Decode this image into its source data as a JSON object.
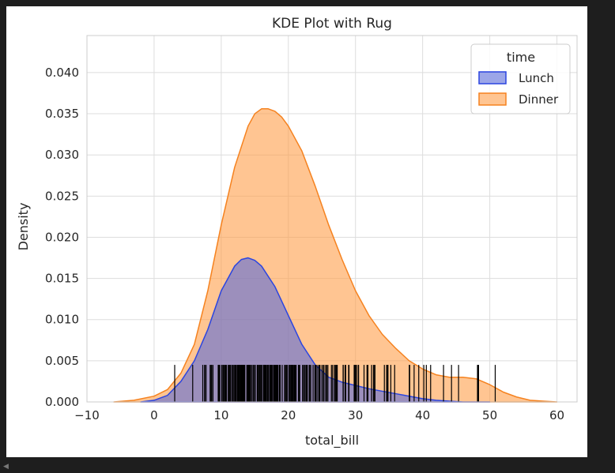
{
  "chart_data": {
    "type": "area",
    "title": "KDE Plot with Rug",
    "xlabel": "total_bill",
    "ylabel": "Density",
    "xlim": [
      -10,
      63
    ],
    "ylim": [
      0,
      0.0445
    ],
    "xticks": [
      -10,
      0,
      10,
      20,
      30,
      40,
      50,
      60
    ],
    "xtick_labels": [
      "−10",
      "0",
      "10",
      "20",
      "30",
      "40",
      "50",
      "60"
    ],
    "yticks": [
      0.0,
      0.005,
      0.01,
      0.015,
      0.02,
      0.025,
      0.03,
      0.035,
      0.04
    ],
    "ytick_labels": [
      "0.000",
      "0.005",
      "0.010",
      "0.015",
      "0.020",
      "0.025",
      "0.030",
      "0.035",
      "0.040"
    ],
    "grid": true,
    "legend": {
      "title": "time",
      "position": "top-right"
    },
    "series": [
      {
        "name": "Dinner",
        "color": "#ff9f4a",
        "edge_color": "#f5821f",
        "x": [
          -6,
          -3,
          0,
          2,
          4,
          6,
          8,
          10,
          12,
          14,
          15,
          16,
          17,
          18,
          19,
          20,
          22,
          24,
          26,
          28,
          30,
          32,
          34,
          36,
          38,
          40,
          42,
          44,
          46,
          48,
          50,
          52,
          54,
          56,
          58,
          60
        ],
        "y": [
          0.0,
          0.0002,
          0.0007,
          0.0015,
          0.0035,
          0.007,
          0.0135,
          0.0215,
          0.0285,
          0.0335,
          0.035,
          0.0356,
          0.0356,
          0.0353,
          0.0346,
          0.0335,
          0.0305,
          0.0262,
          0.0215,
          0.0173,
          0.0135,
          0.0105,
          0.0082,
          0.0065,
          0.005,
          0.004,
          0.0033,
          0.003,
          0.003,
          0.0028,
          0.0021,
          0.0012,
          0.0006,
          0.0002,
          0.0001,
          0.0
        ]
      },
      {
        "name": "Lunch",
        "color": "#5a6bd8",
        "edge_color": "#2b45e0",
        "x": [
          -2,
          0,
          2,
          4,
          6,
          8,
          10,
          12,
          13,
          14,
          15,
          16,
          18,
          20,
          22,
          24,
          26,
          28,
          30,
          32,
          34,
          36,
          38,
          40,
          42,
          44,
          46,
          48,
          50
        ],
        "y": [
          0.0,
          0.0002,
          0.0008,
          0.0025,
          0.005,
          0.0088,
          0.0135,
          0.0165,
          0.0173,
          0.0175,
          0.0172,
          0.0165,
          0.014,
          0.0105,
          0.007,
          0.0045,
          0.003,
          0.0024,
          0.002,
          0.0016,
          0.0013,
          0.001,
          0.0007,
          0.0004,
          0.0002,
          0.0001,
          0.0,
          0.0,
          0.0
        ]
      }
    ],
    "rug": {
      "color": "#000000",
      "height": 0.0045,
      "values": [
        3.07,
        5.75,
        7.25,
        7.51,
        7.56,
        7.74,
        8.35,
        8.51,
        8.52,
        8.58,
        8.77,
        9.55,
        9.6,
        9.68,
        9.78,
        10.07,
        10.09,
        10.27,
        10.29,
        10.33,
        10.34,
        10.51,
        10.59,
        10.63,
        10.65,
        10.77,
        11.02,
        11.17,
        11.24,
        11.35,
        11.38,
        11.59,
        11.61,
        11.69,
        11.87,
        12.02,
        12.03,
        12.16,
        12.26,
        12.43,
        12.46,
        12.48,
        12.54,
        12.6,
        12.66,
        12.69,
        12.74,
        12.76,
        12.9,
        13.0,
        13.03,
        13.13,
        13.16,
        13.27,
        13.28,
        13.37,
        13.39,
        13.42,
        13.51,
        13.81,
        13.94,
        14.0,
        14.07,
        14.15,
        14.26,
        14.31,
        14.48,
        14.52,
        14.73,
        14.78,
        14.83,
        15.01,
        15.04,
        15.06,
        15.36,
        15.38,
        15.42,
        15.48,
        15.53,
        15.69,
        15.77,
        15.81,
        15.95,
        15.98,
        16.0,
        16.04,
        16.27,
        16.29,
        16.31,
        16.4,
        16.43,
        16.45,
        16.47,
        16.58,
        16.66,
        16.82,
        16.93,
        16.97,
        16.99,
        17.07,
        17.26,
        17.29,
        17.31,
        17.46,
        17.47,
        17.51,
        17.59,
        17.78,
        17.82,
        17.89,
        17.92,
        18.04,
        18.15,
        18.24,
        18.26,
        18.28,
        18.29,
        18.35,
        18.43,
        18.64,
        18.69,
        18.71,
        18.78,
        19.08,
        19.44,
        19.49,
        19.65,
        19.77,
        19.81,
        19.82,
        20.08,
        20.23,
        20.27,
        20.29,
        20.45,
        20.49,
        20.53,
        20.65,
        20.69,
        20.76,
        20.9,
        20.92,
        21.01,
        21.16,
        21.5,
        21.58,
        21.7,
        22.12,
        22.23,
        22.42,
        22.49,
        22.67,
        22.75,
        22.76,
        22.82,
        23.1,
        23.17,
        23.33,
        23.68,
        23.95,
        24.01,
        24.06,
        24.08,
        24.27,
        24.52,
        24.55,
        24.59,
        24.71,
        25.0,
        25.21,
        25.28,
        25.29,
        25.56,
        25.71,
        25.89,
        26.41,
        26.59,
        26.86,
        26.88,
        27.05,
        27.18,
        27.2,
        27.28,
        28.15,
        28.17,
        28.44,
        28.55,
        28.97,
        29.03,
        29.8,
        29.85,
        29.93,
        30.06,
        30.14,
        30.4,
        30.46,
        31.27,
        31.71,
        31.85,
        32.4,
        32.68,
        32.83,
        32.9,
        34.3,
        34.63,
        34.65,
        34.81,
        34.83,
        35.26,
        35.83,
        38.01,
        38.07,
        38.73,
        39.42,
        40.17,
        40.55,
        41.19,
        43.11,
        44.3,
        45.35,
        48.17,
        48.27,
        48.33,
        50.81
      ]
    }
  }
}
